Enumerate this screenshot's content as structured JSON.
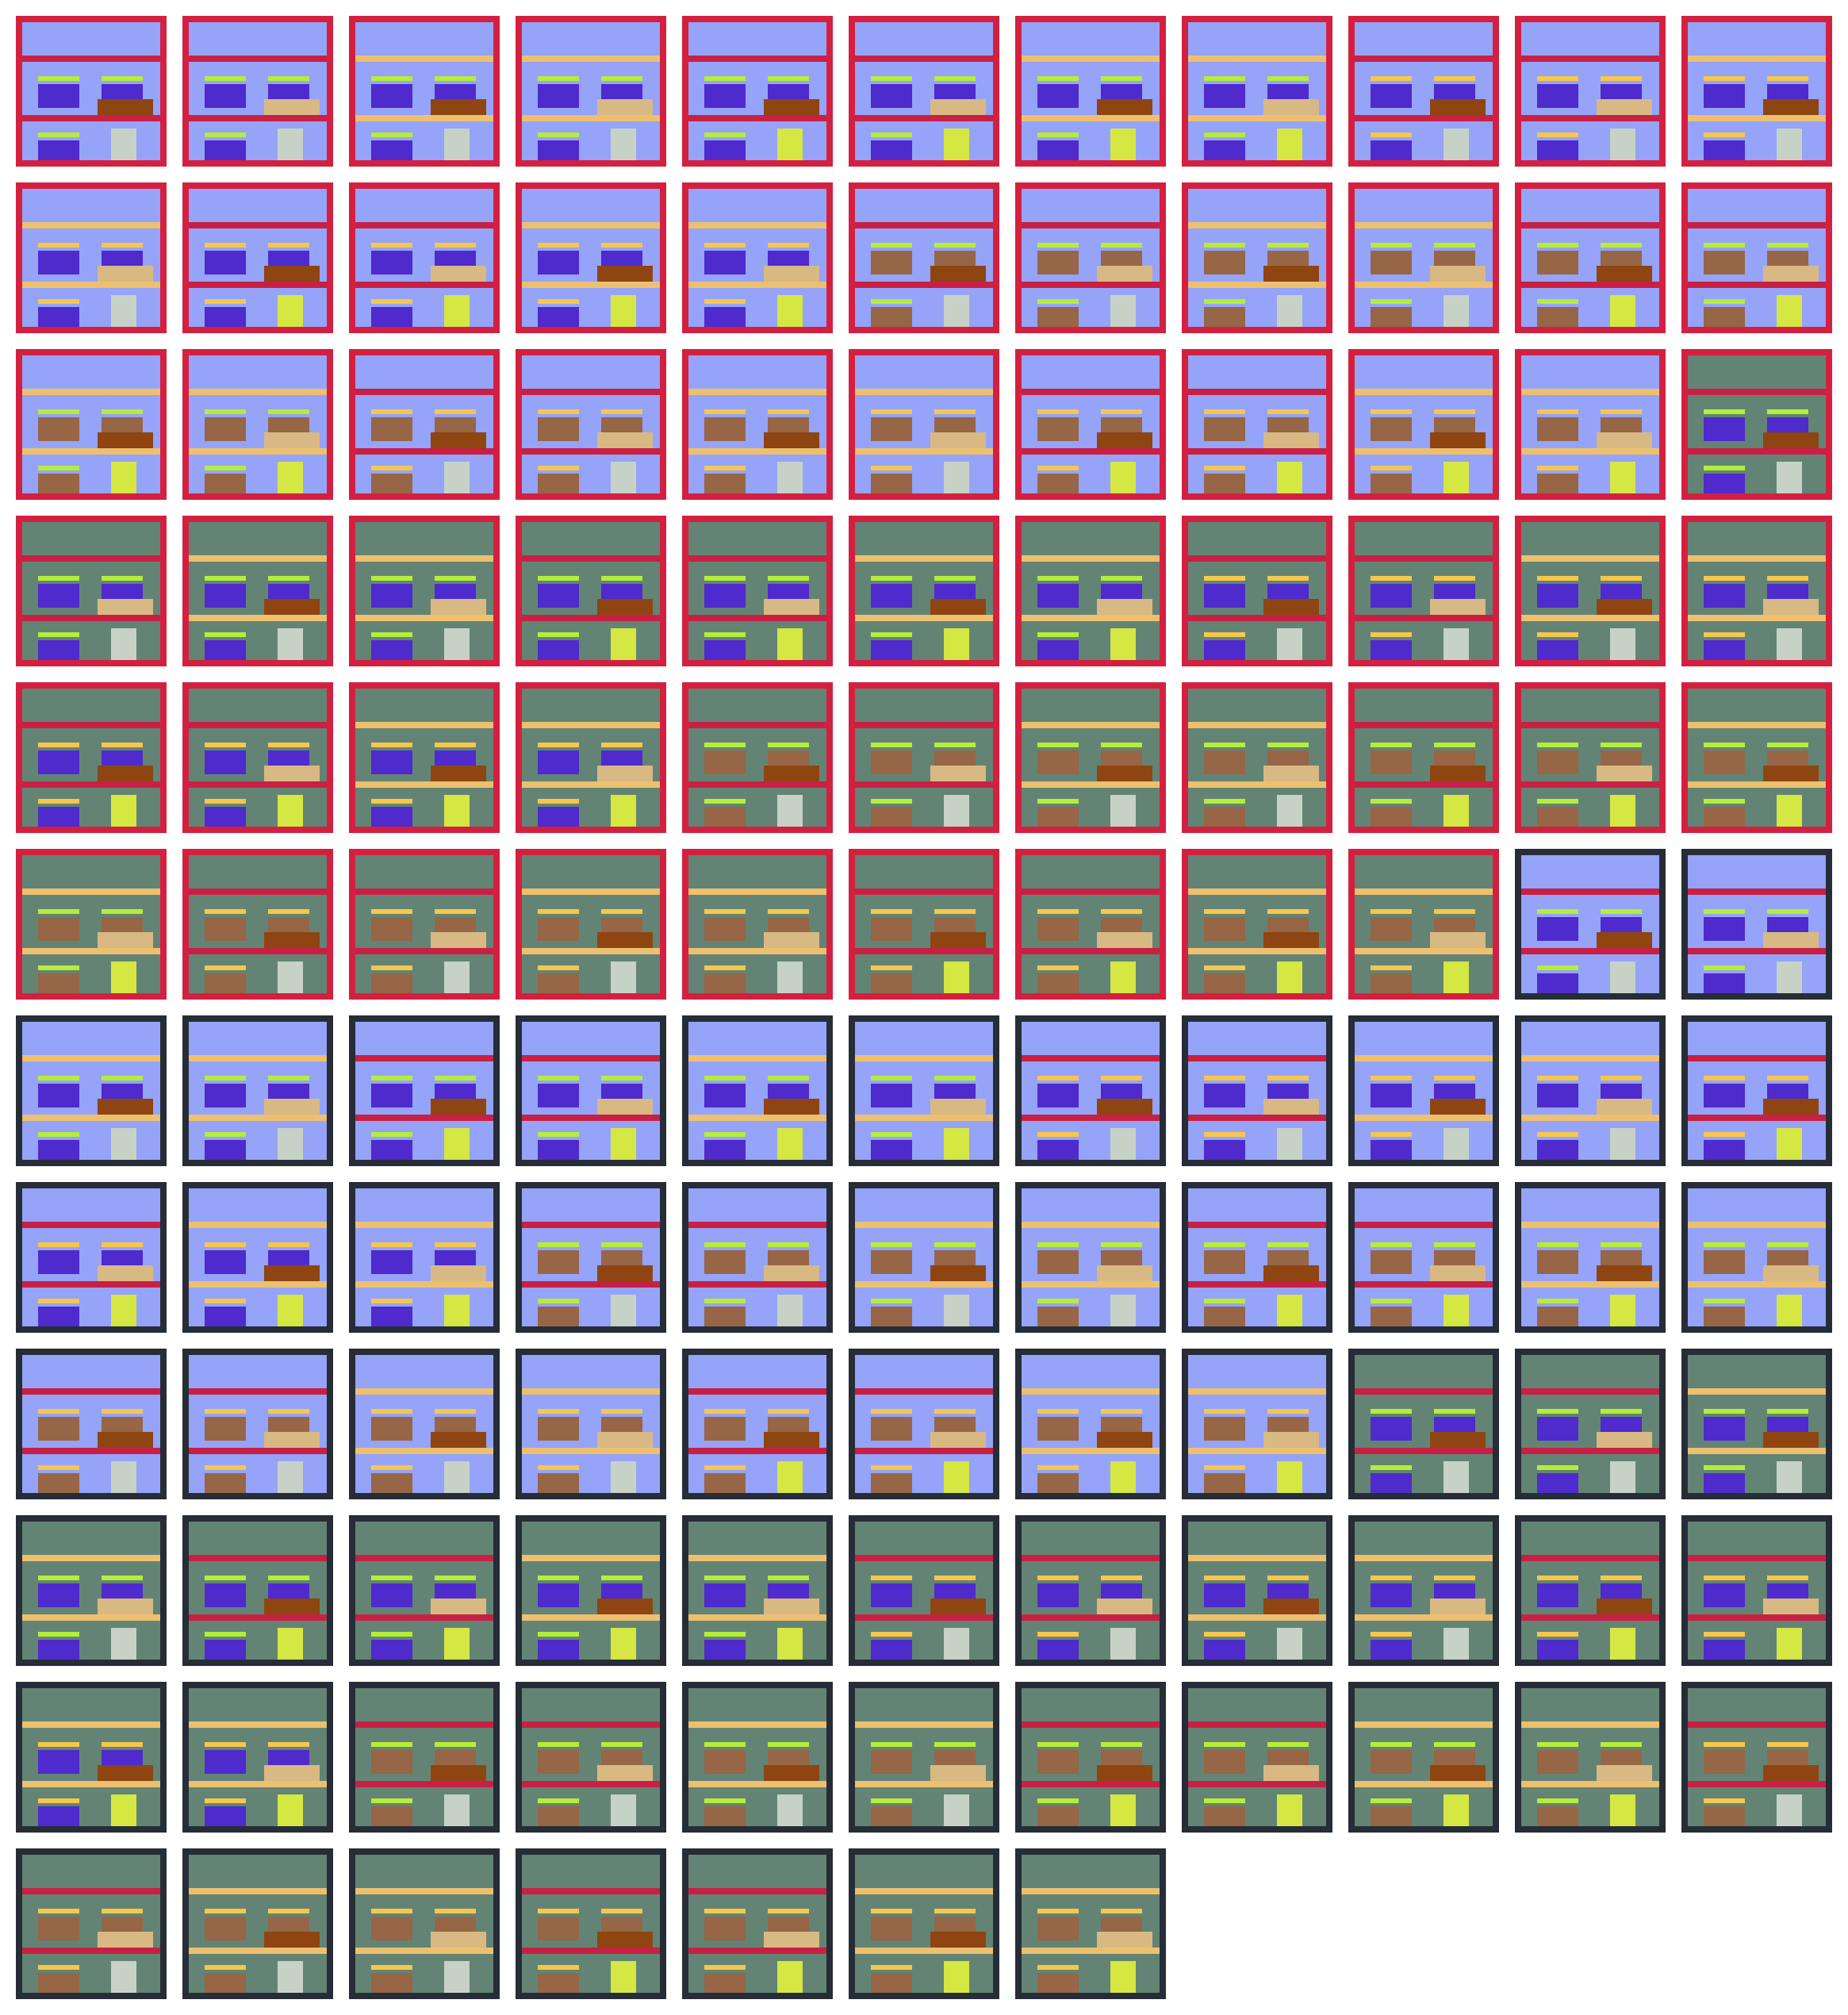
{
  "colors": {
    "frame_red": "#d42040",
    "frame_dark": "#262d36",
    "wall_blue": "#95a3f8",
    "wall_green": "#638474",
    "shelf_red": "#c82044",
    "shelf_tan": "#edc070",
    "box_purple": "#4f2acc",
    "box_brown": "#966646",
    "lid_lime": "#b6ed3a",
    "lid_gold": "#f6c74c",
    "tray_rust": "#8e4512",
    "tray_beige": "#d8b983",
    "post_grey": "#c7d2c7",
    "post_yellow": "#d5e743"
  },
  "grid": {
    "columns": 11,
    "tile_count": 128
  }
}
